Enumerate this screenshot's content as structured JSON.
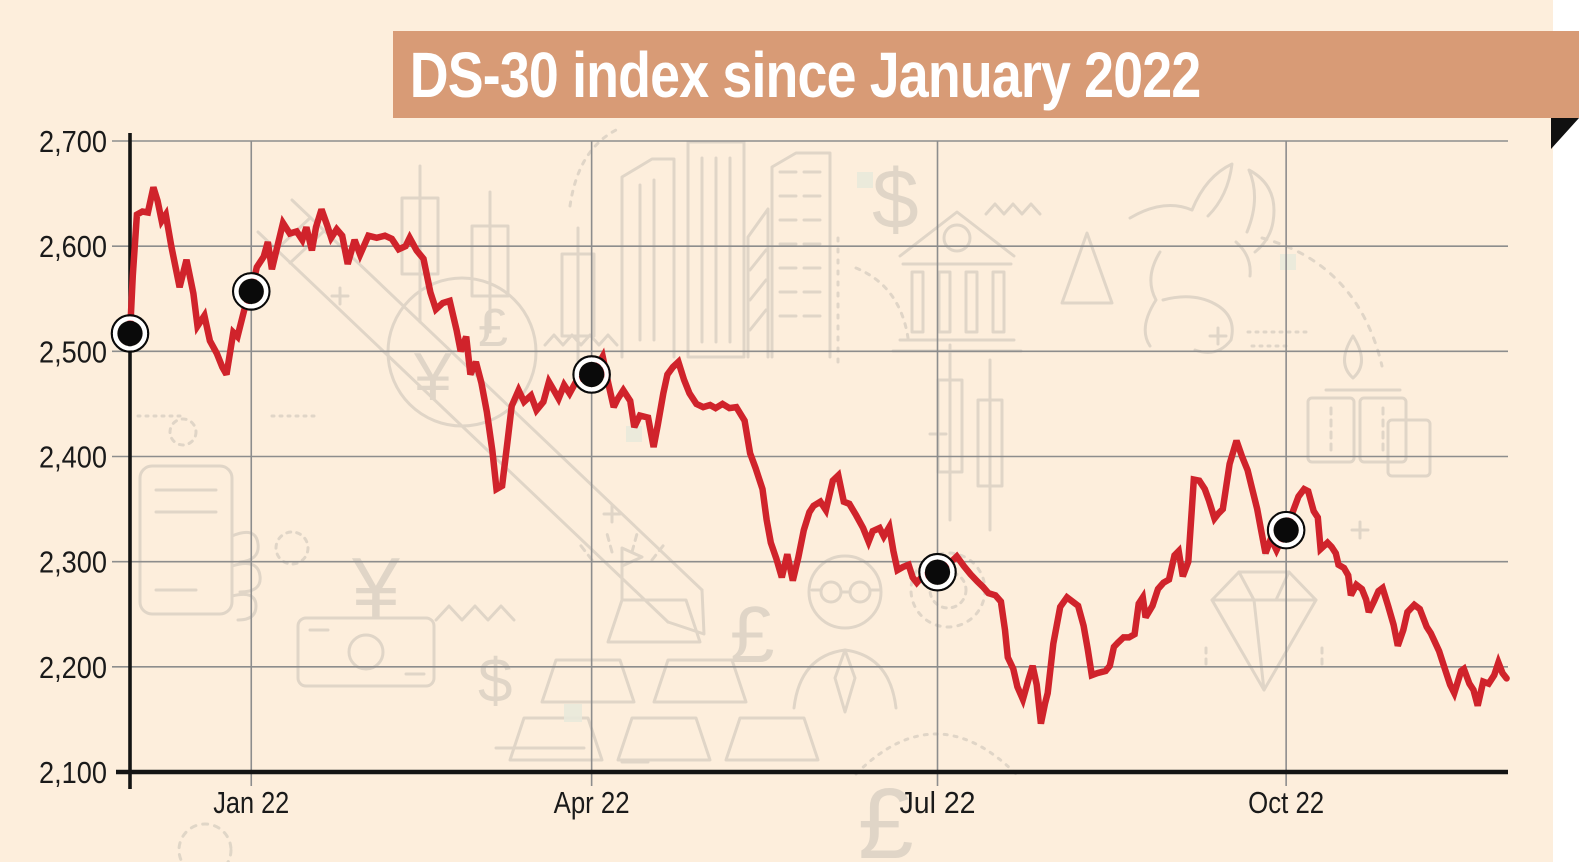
{
  "page": {
    "title_band": {
      "text": "DS-30 index since January 2022"
    },
    "colors": {
      "page_background": "#ffffff",
      "panel_background": "#fdeedc",
      "band": "#d89b76",
      "line": "#d0232b",
      "grid": "#8d8d8d",
      "axis": "#141414",
      "label": "#1a1a1a",
      "marker": "#0a0a0a",
      "watermark": "#c9c2b6"
    }
  },
  "watermarks": {
    "icons": [
      "phone-in-hand",
      "dotted-circle",
      "yen-sign",
      "money-bill",
      "zigzag",
      "dollar-sign",
      "gold-bars",
      "pencil",
      "candlestick-chart",
      "currency-circle",
      "city-buildings",
      "bank-building",
      "up-triangle",
      "bull",
      "oil-droplet",
      "oil-barrels",
      "dashed-arc",
      "businessman",
      "pound-sign",
      "dashed-target",
      "diamond",
      "plus-mark"
    ],
    "glyphs": {
      "dollar_large": "$",
      "dollar_small": "$",
      "yen_left": "¥",
      "yen_circle": "¥",
      "pound_circle": "£",
      "pound_mid": "£",
      "pound_bottom": "£"
    }
  },
  "chart_data": {
    "type": "line",
    "title": "DS-30 index since January 2022",
    "grid": true,
    "y_axis": {
      "min": 2100,
      "max": 2700,
      "tick_step": 100,
      "tick_labels": [
        "2,100",
        "2,200",
        "2,300",
        "2,400",
        "2,500",
        "2,600",
        "2,700"
      ]
    },
    "x_axis": {
      "tick_labels": [
        "Jan 22",
        "Apr 22",
        "Jul 22",
        "Oct 22"
      ],
      "tick_pct": [
        8.8,
        33.5,
        58.6,
        83.9
      ]
    },
    "series": [
      {
        "name": "DS-30 index",
        "color": "#d0232b",
        "points": [
          [
            0,
            2517
          ],
          [
            0.2,
            2572
          ],
          [
            0.5,
            2630
          ],
          [
            0.9,
            2633
          ],
          [
            1.3,
            2632
          ],
          [
            1.7,
            2656
          ],
          [
            2,
            2643
          ],
          [
            2.3,
            2624
          ],
          [
            2.6,
            2630
          ],
          [
            3,
            2600
          ],
          [
            3.6,
            2561
          ],
          [
            4.1,
            2587
          ],
          [
            4.6,
            2555
          ],
          [
            4.9,
            2524
          ],
          [
            5.4,
            2534
          ],
          [
            5.8,
            2510
          ],
          [
            6.3,
            2498
          ],
          [
            6.7,
            2485
          ],
          [
            7,
            2478
          ],
          [
            7.5,
            2518
          ],
          [
            7.8,
            2514
          ],
          [
            8.3,
            2540
          ],
          [
            8.8,
            2557
          ],
          [
            9.2,
            2580
          ],
          [
            9.7,
            2590
          ],
          [
            10,
            2604
          ],
          [
            10.3,
            2578
          ],
          [
            10.7,
            2600
          ],
          [
            11.1,
            2622
          ],
          [
            11.6,
            2612
          ],
          [
            12.1,
            2614
          ],
          [
            12.5,
            2606
          ],
          [
            12.8,
            2618
          ],
          [
            13.2,
            2596
          ],
          [
            13.5,
            2618
          ],
          [
            13.9,
            2635
          ],
          [
            14.3,
            2620
          ],
          [
            14.6,
            2608
          ],
          [
            15,
            2616
          ],
          [
            15.4,
            2610
          ],
          [
            15.8,
            2583
          ],
          [
            16.3,
            2606
          ],
          [
            16.7,
            2592
          ],
          [
            17.3,
            2610
          ],
          [
            17.9,
            2608
          ],
          [
            18.5,
            2610
          ],
          [
            19,
            2607
          ],
          [
            19.5,
            2597
          ],
          [
            20,
            2600
          ],
          [
            20.3,
            2608
          ],
          [
            20.8,
            2596
          ],
          [
            21.3,
            2588
          ],
          [
            21.8,
            2556
          ],
          [
            22.2,
            2540
          ],
          [
            22.7,
            2546
          ],
          [
            23.2,
            2548
          ],
          [
            23.7,
            2520
          ],
          [
            24,
            2500
          ],
          [
            24.4,
            2514
          ],
          [
            24.7,
            2478
          ],
          [
            25.1,
            2490
          ],
          [
            25.5,
            2470
          ],
          [
            25.9,
            2442
          ],
          [
            26.3,
            2405
          ],
          [
            26.6,
            2369
          ],
          [
            27,
            2372
          ],
          [
            27.4,
            2415
          ],
          [
            27.7,
            2448
          ],
          [
            28.2,
            2463
          ],
          [
            28.6,
            2452
          ],
          [
            29.1,
            2458
          ],
          [
            29.5,
            2444
          ],
          [
            30,
            2452
          ],
          [
            30.4,
            2471
          ],
          [
            30.8,
            2462
          ],
          [
            31.1,
            2455
          ],
          [
            31.5,
            2468
          ],
          [
            31.9,
            2460
          ],
          [
            32.4,
            2472
          ],
          [
            32.9,
            2475
          ],
          [
            33.5,
            2478
          ],
          [
            34,
            2488
          ],
          [
            34.3,
            2495
          ],
          [
            34.7,
            2470
          ],
          [
            35.1,
            2447
          ],
          [
            35.4,
            2455
          ],
          [
            35.8,
            2463
          ],
          [
            36.3,
            2453
          ],
          [
            36.6,
            2428
          ],
          [
            37,
            2439
          ],
          [
            37.6,
            2437
          ],
          [
            38,
            2409
          ],
          [
            38.3,
            2430
          ],
          [
            38.7,
            2460
          ],
          [
            39,
            2478
          ],
          [
            39.4,
            2485
          ],
          [
            39.8,
            2490
          ],
          [
            40.2,
            2473
          ],
          [
            40.6,
            2460
          ],
          [
            41.1,
            2450
          ],
          [
            41.6,
            2447
          ],
          [
            42.1,
            2449
          ],
          [
            42.5,
            2446
          ],
          [
            43,
            2450
          ],
          [
            43.5,
            2446
          ],
          [
            44,
            2447
          ],
          [
            44.6,
            2434
          ],
          [
            45,
            2403
          ],
          [
            45.4,
            2389
          ],
          [
            45.9,
            2369
          ],
          [
            46.2,
            2340
          ],
          [
            46.5,
            2318
          ],
          [
            46.9,
            2303
          ],
          [
            47.3,
            2285
          ],
          [
            47.7,
            2307
          ],
          [
            48.1,
            2282
          ],
          [
            48.5,
            2304
          ],
          [
            48.9,
            2330
          ],
          [
            49.3,
            2347
          ],
          [
            49.6,
            2353
          ],
          [
            50.1,
            2357
          ],
          [
            50.5,
            2349
          ],
          [
            51,
            2377
          ],
          [
            51.4,
            2382
          ],
          [
            51.8,
            2357
          ],
          [
            52.2,
            2355
          ],
          [
            52.7,
            2344
          ],
          [
            53.2,
            2332
          ],
          [
            53.6,
            2319
          ],
          [
            53.9,
            2329
          ],
          [
            54.4,
            2332
          ],
          [
            54.7,
            2324
          ],
          [
            55.1,
            2333
          ],
          [
            55.4,
            2310
          ],
          [
            55.7,
            2292
          ],
          [
            56.1,
            2295
          ],
          [
            56.5,
            2297
          ],
          [
            56.8,
            2285
          ],
          [
            57.1,
            2280
          ],
          [
            57.5,
            2286
          ],
          [
            58,
            2288
          ],
          [
            58.6,
            2290
          ],
          [
            59.1,
            2295
          ],
          [
            59.6,
            2300
          ],
          [
            60,
            2305
          ],
          [
            60.5,
            2296
          ],
          [
            61,
            2288
          ],
          [
            61.5,
            2281
          ],
          [
            61.9,
            2276
          ],
          [
            62.3,
            2270
          ],
          [
            62.8,
            2268
          ],
          [
            63.2,
            2262
          ],
          [
            63.5,
            2235
          ],
          [
            63.7,
            2209
          ],
          [
            64.1,
            2198
          ],
          [
            64.4,
            2181
          ],
          [
            64.8,
            2169
          ],
          [
            65.2,
            2188
          ],
          [
            65.5,
            2201
          ],
          [
            65.8,
            2183
          ],
          [
            66.1,
            2146
          ],
          [
            66.4,
            2165
          ],
          [
            66.6,
            2175
          ],
          [
            67,
            2222
          ],
          [
            67.5,
            2257
          ],
          [
            68,
            2266
          ],
          [
            68.4,
            2262
          ],
          [
            68.8,
            2258
          ],
          [
            69.2,
            2239
          ],
          [
            69.5,
            2217
          ],
          [
            69.8,
            2192
          ],
          [
            70.2,
            2194
          ],
          [
            70.8,
            2196
          ],
          [
            71.1,
            2201
          ],
          [
            71.4,
            2219
          ],
          [
            71.7,
            2223
          ],
          [
            72.1,
            2228
          ],
          [
            72.5,
            2228
          ],
          [
            72.9,
            2231
          ],
          [
            73.2,
            2260
          ],
          [
            73.5,
            2266
          ],
          [
            73.7,
            2247
          ],
          [
            74.2,
            2258
          ],
          [
            74.6,
            2274
          ],
          [
            75,
            2280
          ],
          [
            75.4,
            2283
          ],
          [
            75.8,
            2306
          ],
          [
            76.1,
            2310
          ],
          [
            76.4,
            2286
          ],
          [
            76.8,
            2300
          ],
          [
            77.2,
            2378
          ],
          [
            77.6,
            2377
          ],
          [
            78,
            2369
          ],
          [
            78.3,
            2358
          ],
          [
            78.7,
            2341
          ],
          [
            79,
            2346
          ],
          [
            79.3,
            2350
          ],
          [
            79.8,
            2393
          ],
          [
            80.3,
            2415
          ],
          [
            80.7,
            2400
          ],
          [
            81.1,
            2387
          ],
          [
            81.4,
            2371
          ],
          [
            81.8,
            2350
          ],
          [
            82.1,
            2329
          ],
          [
            82.4,
            2308
          ],
          [
            82.8,
            2322
          ],
          [
            83.2,
            2311
          ],
          [
            83.9,
            2330
          ],
          [
            84.4,
            2348
          ],
          [
            84.8,
            2362
          ],
          [
            85.2,
            2369
          ],
          [
            85.5,
            2367
          ],
          [
            85.9,
            2348
          ],
          [
            86.2,
            2342
          ],
          [
            86.4,
            2312
          ],
          [
            86.9,
            2318
          ],
          [
            87.2,
            2314
          ],
          [
            87.5,
            2308
          ],
          [
            87.7,
            2297
          ],
          [
            88.1,
            2294
          ],
          [
            88.4,
            2287
          ],
          [
            88.6,
            2268
          ],
          [
            89,
            2278
          ],
          [
            89.4,
            2274
          ],
          [
            89.7,
            2264
          ],
          [
            89.9,
            2252
          ],
          [
            90.3,
            2263
          ],
          [
            90.6,
            2272
          ],
          [
            90.9,
            2275
          ],
          [
            91.3,
            2258
          ],
          [
            91.7,
            2240
          ],
          [
            92,
            2220
          ],
          [
            92.4,
            2235
          ],
          [
            92.7,
            2252
          ],
          [
            93.2,
            2259
          ],
          [
            93.6,
            2255
          ],
          [
            94.1,
            2238
          ],
          [
            94.4,
            2232
          ],
          [
            95,
            2215
          ],
          [
            95.3,
            2203
          ],
          [
            95.8,
            2183
          ],
          [
            96.1,
            2175
          ],
          [
            96.6,
            2196
          ],
          [
            96.8,
            2198
          ],
          [
            97.2,
            2184
          ],
          [
            97.5,
            2178
          ],
          [
            97.8,
            2163
          ],
          [
            98.2,
            2186
          ],
          [
            98.6,
            2184
          ],
          [
            99,
            2192
          ],
          [
            99.3,
            2204
          ],
          [
            99.6,
            2194
          ],
          [
            99.9,
            2189
          ]
        ]
      }
    ],
    "markers": {
      "color": "#0a0a0a",
      "points": [
        [
          0,
          2517
        ],
        [
          8.8,
          2557
        ],
        [
          33.5,
          2478
        ],
        [
          58.6,
          2290
        ],
        [
          83.9,
          2330
        ]
      ]
    }
  }
}
